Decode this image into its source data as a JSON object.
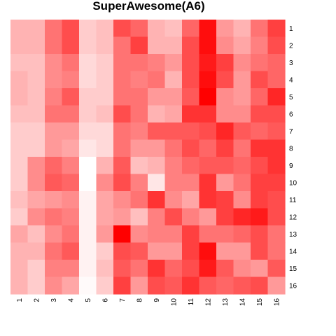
{
  "chart_data": {
    "type": "heatmap",
    "title": "SuperAwesome(A6)",
    "columns": [
      "1",
      "2",
      "3",
      "4",
      "5",
      "6",
      "7",
      "8",
      "9",
      "10",
      "11",
      "12",
      "13",
      "14",
      "15",
      "16"
    ],
    "rows": [
      "1",
      "2",
      "3",
      "4",
      "5",
      "6",
      "7",
      "8",
      "9",
      "10",
      "11",
      "12",
      "13",
      "14",
      "15",
      "16"
    ],
    "color_low": "#ffffff",
    "color_high": "#ff0000",
    "value_range": [
      0,
      1
    ],
    "values": [
      [
        0.3,
        0.3,
        0.55,
        0.7,
        0.2,
        0.25,
        0.7,
        0.6,
        0.3,
        0.25,
        0.6,
        0.95,
        0.4,
        0.3,
        0.55,
        0.75
      ],
      [
        0.3,
        0.3,
        0.55,
        0.7,
        0.2,
        0.25,
        0.55,
        0.75,
        0.3,
        0.3,
        0.7,
        0.95,
        0.45,
        0.35,
        0.5,
        0.7
      ],
      [
        0.25,
        0.25,
        0.45,
        0.55,
        0.15,
        0.2,
        0.55,
        0.55,
        0.5,
        0.4,
        0.7,
        0.9,
        0.75,
        0.45,
        0.55,
        0.6
      ],
      [
        0.3,
        0.25,
        0.45,
        0.5,
        0.15,
        0.2,
        0.55,
        0.5,
        0.55,
        0.3,
        0.7,
        0.95,
        0.7,
        0.4,
        0.7,
        0.6
      ],
      [
        0.3,
        0.25,
        0.5,
        0.65,
        0.2,
        0.2,
        0.55,
        0.55,
        0.4,
        0.4,
        0.65,
        1.0,
        0.45,
        0.4,
        0.6,
        0.85
      ],
      [
        0.25,
        0.25,
        0.55,
        0.55,
        0.2,
        0.25,
        0.7,
        0.55,
        0.3,
        0.35,
        0.8,
        0.8,
        0.45,
        0.45,
        0.7,
        0.7
      ],
      [
        0.2,
        0.2,
        0.4,
        0.4,
        0.15,
        0.15,
        0.55,
        0.5,
        0.65,
        0.65,
        0.65,
        0.7,
        0.85,
        0.65,
        0.6,
        0.65
      ],
      [
        0.2,
        0.2,
        0.4,
        0.35,
        0.1,
        0.15,
        0.55,
        0.4,
        0.4,
        0.55,
        0.7,
        0.6,
        0.75,
        0.55,
        0.8,
        0.8
      ],
      [
        0.2,
        0.45,
        0.6,
        0.5,
        0.0,
        0.3,
        0.65,
        0.25,
        0.3,
        0.5,
        0.6,
        0.65,
        0.65,
        0.6,
        0.7,
        0.8
      ],
      [
        0.2,
        0.45,
        0.65,
        0.6,
        0.0,
        0.45,
        0.7,
        0.5,
        0.1,
        0.5,
        0.5,
        0.8,
        0.4,
        0.55,
        0.75,
        0.75
      ],
      [
        0.25,
        0.35,
        0.4,
        0.45,
        0.05,
        0.35,
        0.45,
        0.55,
        0.8,
        0.45,
        0.35,
        0.8,
        0.75,
        0.45,
        0.75,
        0.7
      ],
      [
        0.2,
        0.45,
        0.55,
        0.5,
        0.05,
        0.35,
        0.4,
        0.25,
        0.5,
        0.7,
        0.5,
        0.4,
        0.75,
        0.85,
        0.9,
        0.7
      ],
      [
        0.35,
        0.25,
        0.45,
        0.55,
        0.05,
        0.4,
        1.0,
        0.45,
        0.5,
        0.5,
        0.75,
        0.55,
        0.55,
        0.6,
        0.7,
        0.55
      ],
      [
        0.3,
        0.3,
        0.55,
        0.65,
        0.05,
        0.2,
        0.7,
        0.65,
        0.4,
        0.4,
        0.75,
        0.95,
        0.4,
        0.4,
        0.7,
        0.55
      ],
      [
        0.3,
        0.2,
        0.5,
        0.5,
        0.05,
        0.25,
        0.65,
        0.55,
        0.8,
        0.6,
        0.7,
        0.9,
        0.65,
        0.45,
        0.4,
        0.65
      ],
      [
        0.3,
        0.2,
        0.45,
        0.35,
        0.02,
        0.2,
        0.75,
        0.4,
        0.7,
        0.65,
        0.8,
        0.65,
        0.6,
        0.65,
        0.7,
        0.4
      ]
    ]
  }
}
